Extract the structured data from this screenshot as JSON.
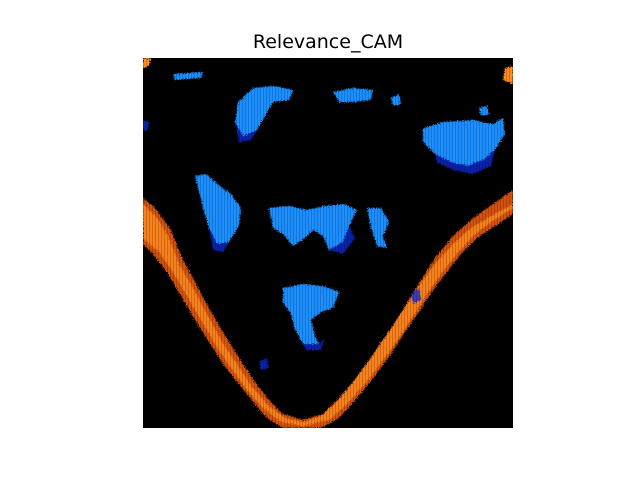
{
  "figure": {
    "title": "Relevance_CAM",
    "background_color": "#ffffff"
  },
  "image": {
    "kind": "relevance-cam-heatmap",
    "panel_color": "#000000",
    "colors": {
      "blue_light": "#1e8fff",
      "blue_dark": "#0a2bd6",
      "orange_light": "#ff8a22",
      "orange_dark": "#b83a05"
    }
  }
}
